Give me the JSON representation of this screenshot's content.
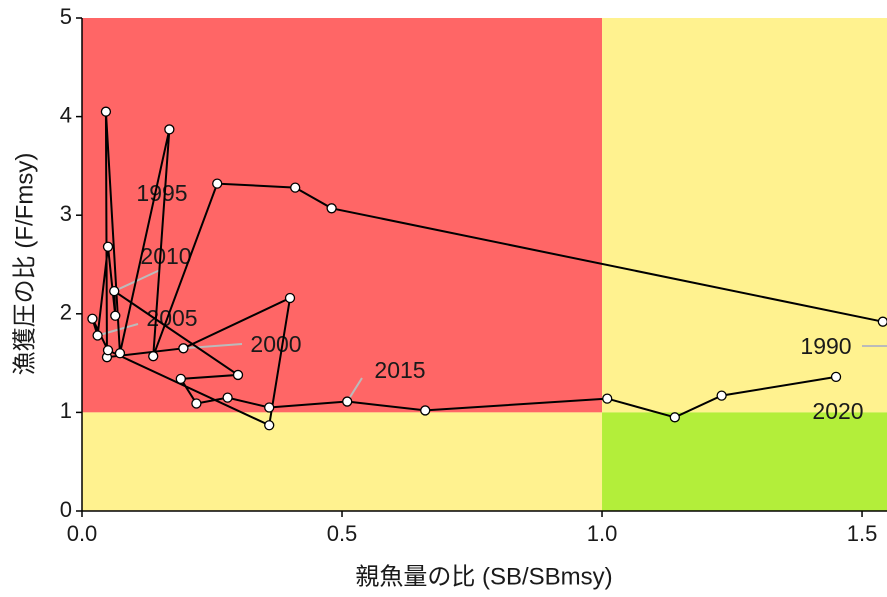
{
  "chart_data": {
    "type": "line",
    "x_label": "親魚量の比 (SB/SBmsy)",
    "y_label": "漁獲圧の比 (F/Fmsy)",
    "xlim": [
      0,
      1.548
    ],
    "ylim": [
      0,
      5
    ],
    "xticks": [
      {
        "value": 0,
        "label": "0.0"
      },
      0.5,
      {
        "value": 1,
        "label": "1.0"
      },
      1.5
    ],
    "yticks": [
      0,
      1,
      2,
      3,
      4,
      5
    ],
    "reference_x": 1,
    "reference_y": 1,
    "zone_colors": {
      "red": "#ff6666",
      "yellow": "#fff28f",
      "green": "#b3ee3a"
    },
    "line_color": "#000000",
    "point_color": "#ffffff",
    "leader_color": "#bbbbbb",
    "x": [
      1.54,
      0.48,
      0.41,
      0.26,
      0.137,
      0.168,
      0.073,
      0.046,
      0.048,
      0.195,
      0.4,
      0.36,
      0.05,
      0.02,
      0.03,
      0.05,
      0.064,
      0.062,
      0.3,
      0.19,
      0.22,
      0.28,
      0.36,
      0.51,
      0.66,
      1.01,
      1.14,
      1.23,
      1.45
    ],
    "y": [
      1.92,
      3.07,
      3.28,
      3.32,
      1.57,
      3.87,
      1.6,
      4.05,
      1.56,
      1.65,
      2.16,
      0.87,
      1.63,
      1.95,
      1.78,
      2.68,
      1.98,
      2.23,
      1.38,
      1.34,
      1.09,
      1.15,
      1.05,
      1.11,
      1.02,
      1.14,
      0.95,
      1.17,
      1.36
    ],
    "point_labels": [
      "1990",
      null,
      null,
      null,
      null,
      "1995",
      null,
      null,
      null,
      "2000",
      null,
      null,
      null,
      null,
      "2005",
      null,
      null,
      "2010",
      null,
      null,
      null,
      null,
      null,
      "2015",
      null,
      null,
      null,
      null,
      "2020"
    ]
  }
}
